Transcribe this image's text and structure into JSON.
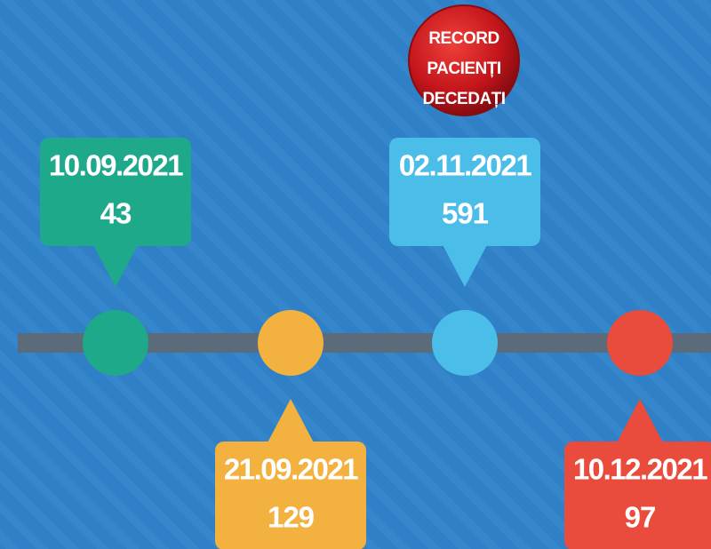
{
  "badge": {
    "lines": [
      "RECORD",
      "PACIENȚI",
      "DECEDAȚI"
    ]
  },
  "events": [
    {
      "date": "10.09.2021",
      "value": 43
    },
    {
      "date": "21.09.2021",
      "value": 129
    },
    {
      "date": "02.11.2021",
      "value": 591
    },
    {
      "date": "10.12.2021",
      "value": 97
    }
  ]
}
